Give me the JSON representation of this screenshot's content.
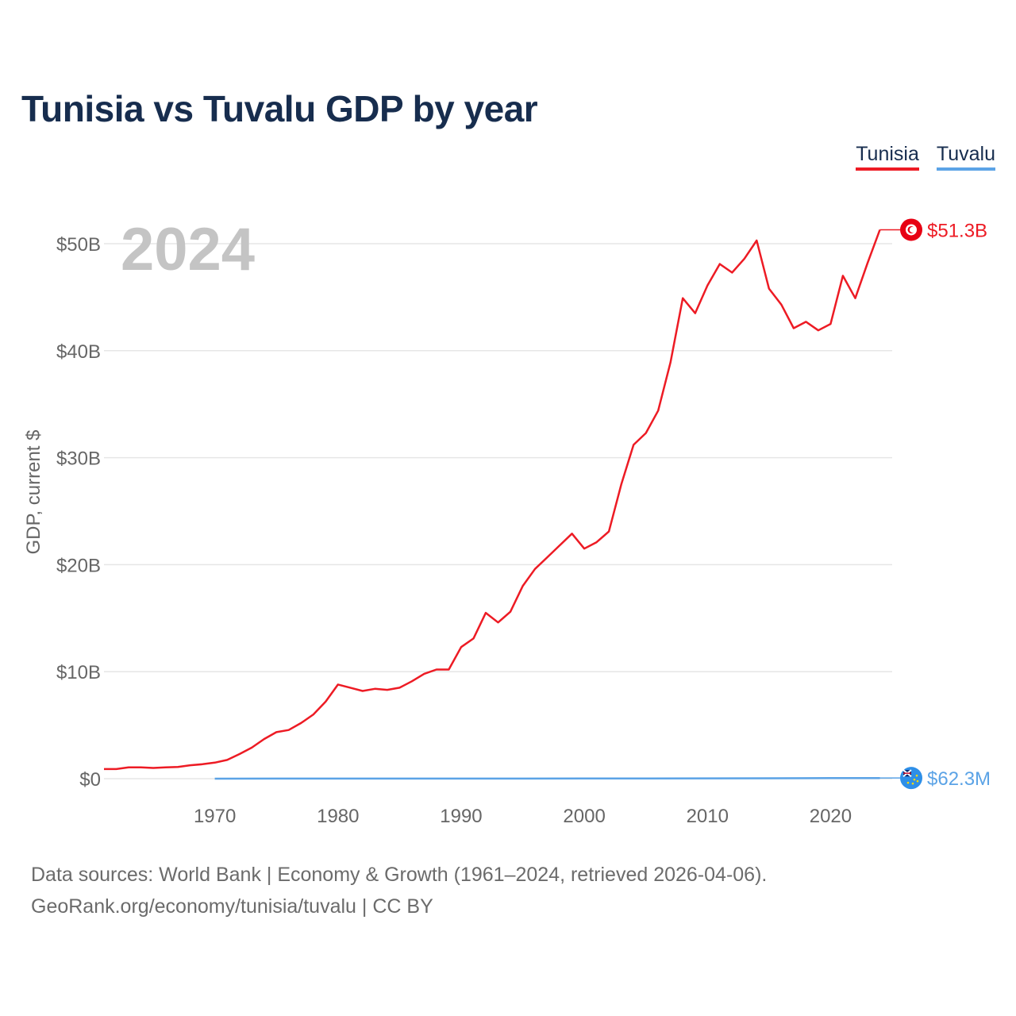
{
  "title": "Tunisia vs Tuvalu GDP by year",
  "legend": [
    {
      "name": "Tunisia",
      "color": "#ed1b24"
    },
    {
      "name": "Tuvalu",
      "color": "#5ba3e6"
    }
  ],
  "footer": {
    "line1": "Data sources: World Bank | Economy & Growth (1961–2024, retrieved 2026-04-06).",
    "line2": "GeoRank.org/economy/tunisia/tuvalu | CC BY"
  },
  "chart_data": {
    "type": "line",
    "title": "Tunisia vs Tuvalu GDP by year",
    "ylabel": "GDP, current $",
    "xlabel": "",
    "year_label": "2024",
    "xlim": [
      1961,
      2025
    ],
    "ylim": [
      0,
      50
    ],
    "y_unit": "billion USD",
    "y_ticks": [
      0,
      10,
      20,
      30,
      40,
      50
    ],
    "y_tick_labels": [
      "$0",
      "$10B",
      "$20B",
      "$30B",
      "$40B",
      "$50B"
    ],
    "x_ticks": [
      1970,
      1980,
      1990,
      2000,
      2010,
      2020
    ],
    "x_tick_labels": [
      "1970",
      "1980",
      "1990",
      "2000",
      "2010",
      "2020"
    ],
    "series": [
      {
        "name": "Tunisia",
        "color": "#ed1b24",
        "end_label": "$51.3B",
        "flag_icon": "tunisia-flag-icon",
        "x": [
          1961,
          1962,
          1963,
          1964,
          1965,
          1966,
          1967,
          1968,
          1969,
          1970,
          1971,
          1972,
          1973,
          1974,
          1975,
          1976,
          1977,
          1978,
          1979,
          1980,
          1981,
          1982,
          1983,
          1984,
          1985,
          1986,
          1987,
          1988,
          1989,
          1990,
          1991,
          1992,
          1993,
          1994,
          1995,
          1996,
          1997,
          1998,
          1999,
          2000,
          2001,
          2002,
          2003,
          2004,
          2005,
          2006,
          2007,
          2008,
          2009,
          2010,
          2011,
          2012,
          2013,
          2014,
          2015,
          2016,
          2017,
          2018,
          2019,
          2020,
          2021,
          2022,
          2023,
          2024
        ],
        "values": [
          0.9,
          0.9,
          1.05,
          1.05,
          1.0,
          1.05,
          1.1,
          1.25,
          1.35,
          1.5,
          1.75,
          2.3,
          2.9,
          3.7,
          4.35,
          4.55,
          5.2,
          6.0,
          7.2,
          8.8,
          8.5,
          8.2,
          8.4,
          8.3,
          8.5,
          9.1,
          9.8,
          10.2,
          10.2,
          12.3,
          13.1,
          15.5,
          14.6,
          15.6,
          18.0,
          19.6,
          20.7,
          21.8,
          22.9,
          21.5,
          22.1,
          23.1,
          27.5,
          31.2,
          32.3,
          34.4,
          38.9,
          44.9,
          43.5,
          46.1,
          48.1,
          47.3,
          48.6,
          50.3,
          45.8,
          44.3,
          42.1,
          42.7,
          41.9,
          42.5,
          47.0,
          44.9,
          48.2,
          51.3
        ]
      },
      {
        "name": "Tuvalu",
        "color": "#5ba3e6",
        "end_label": "$62.3M",
        "flag_icon": "tuvalu-flag-icon",
        "x": [
          1970,
          1975,
          1980,
          1985,
          1990,
          1995,
          2000,
          2005,
          2010,
          2015,
          2020,
          2024
        ],
        "values": [
          0.003,
          0.004,
          0.005,
          0.006,
          0.008,
          0.01,
          0.013,
          0.02,
          0.031,
          0.036,
          0.055,
          0.0623
        ]
      }
    ]
  }
}
